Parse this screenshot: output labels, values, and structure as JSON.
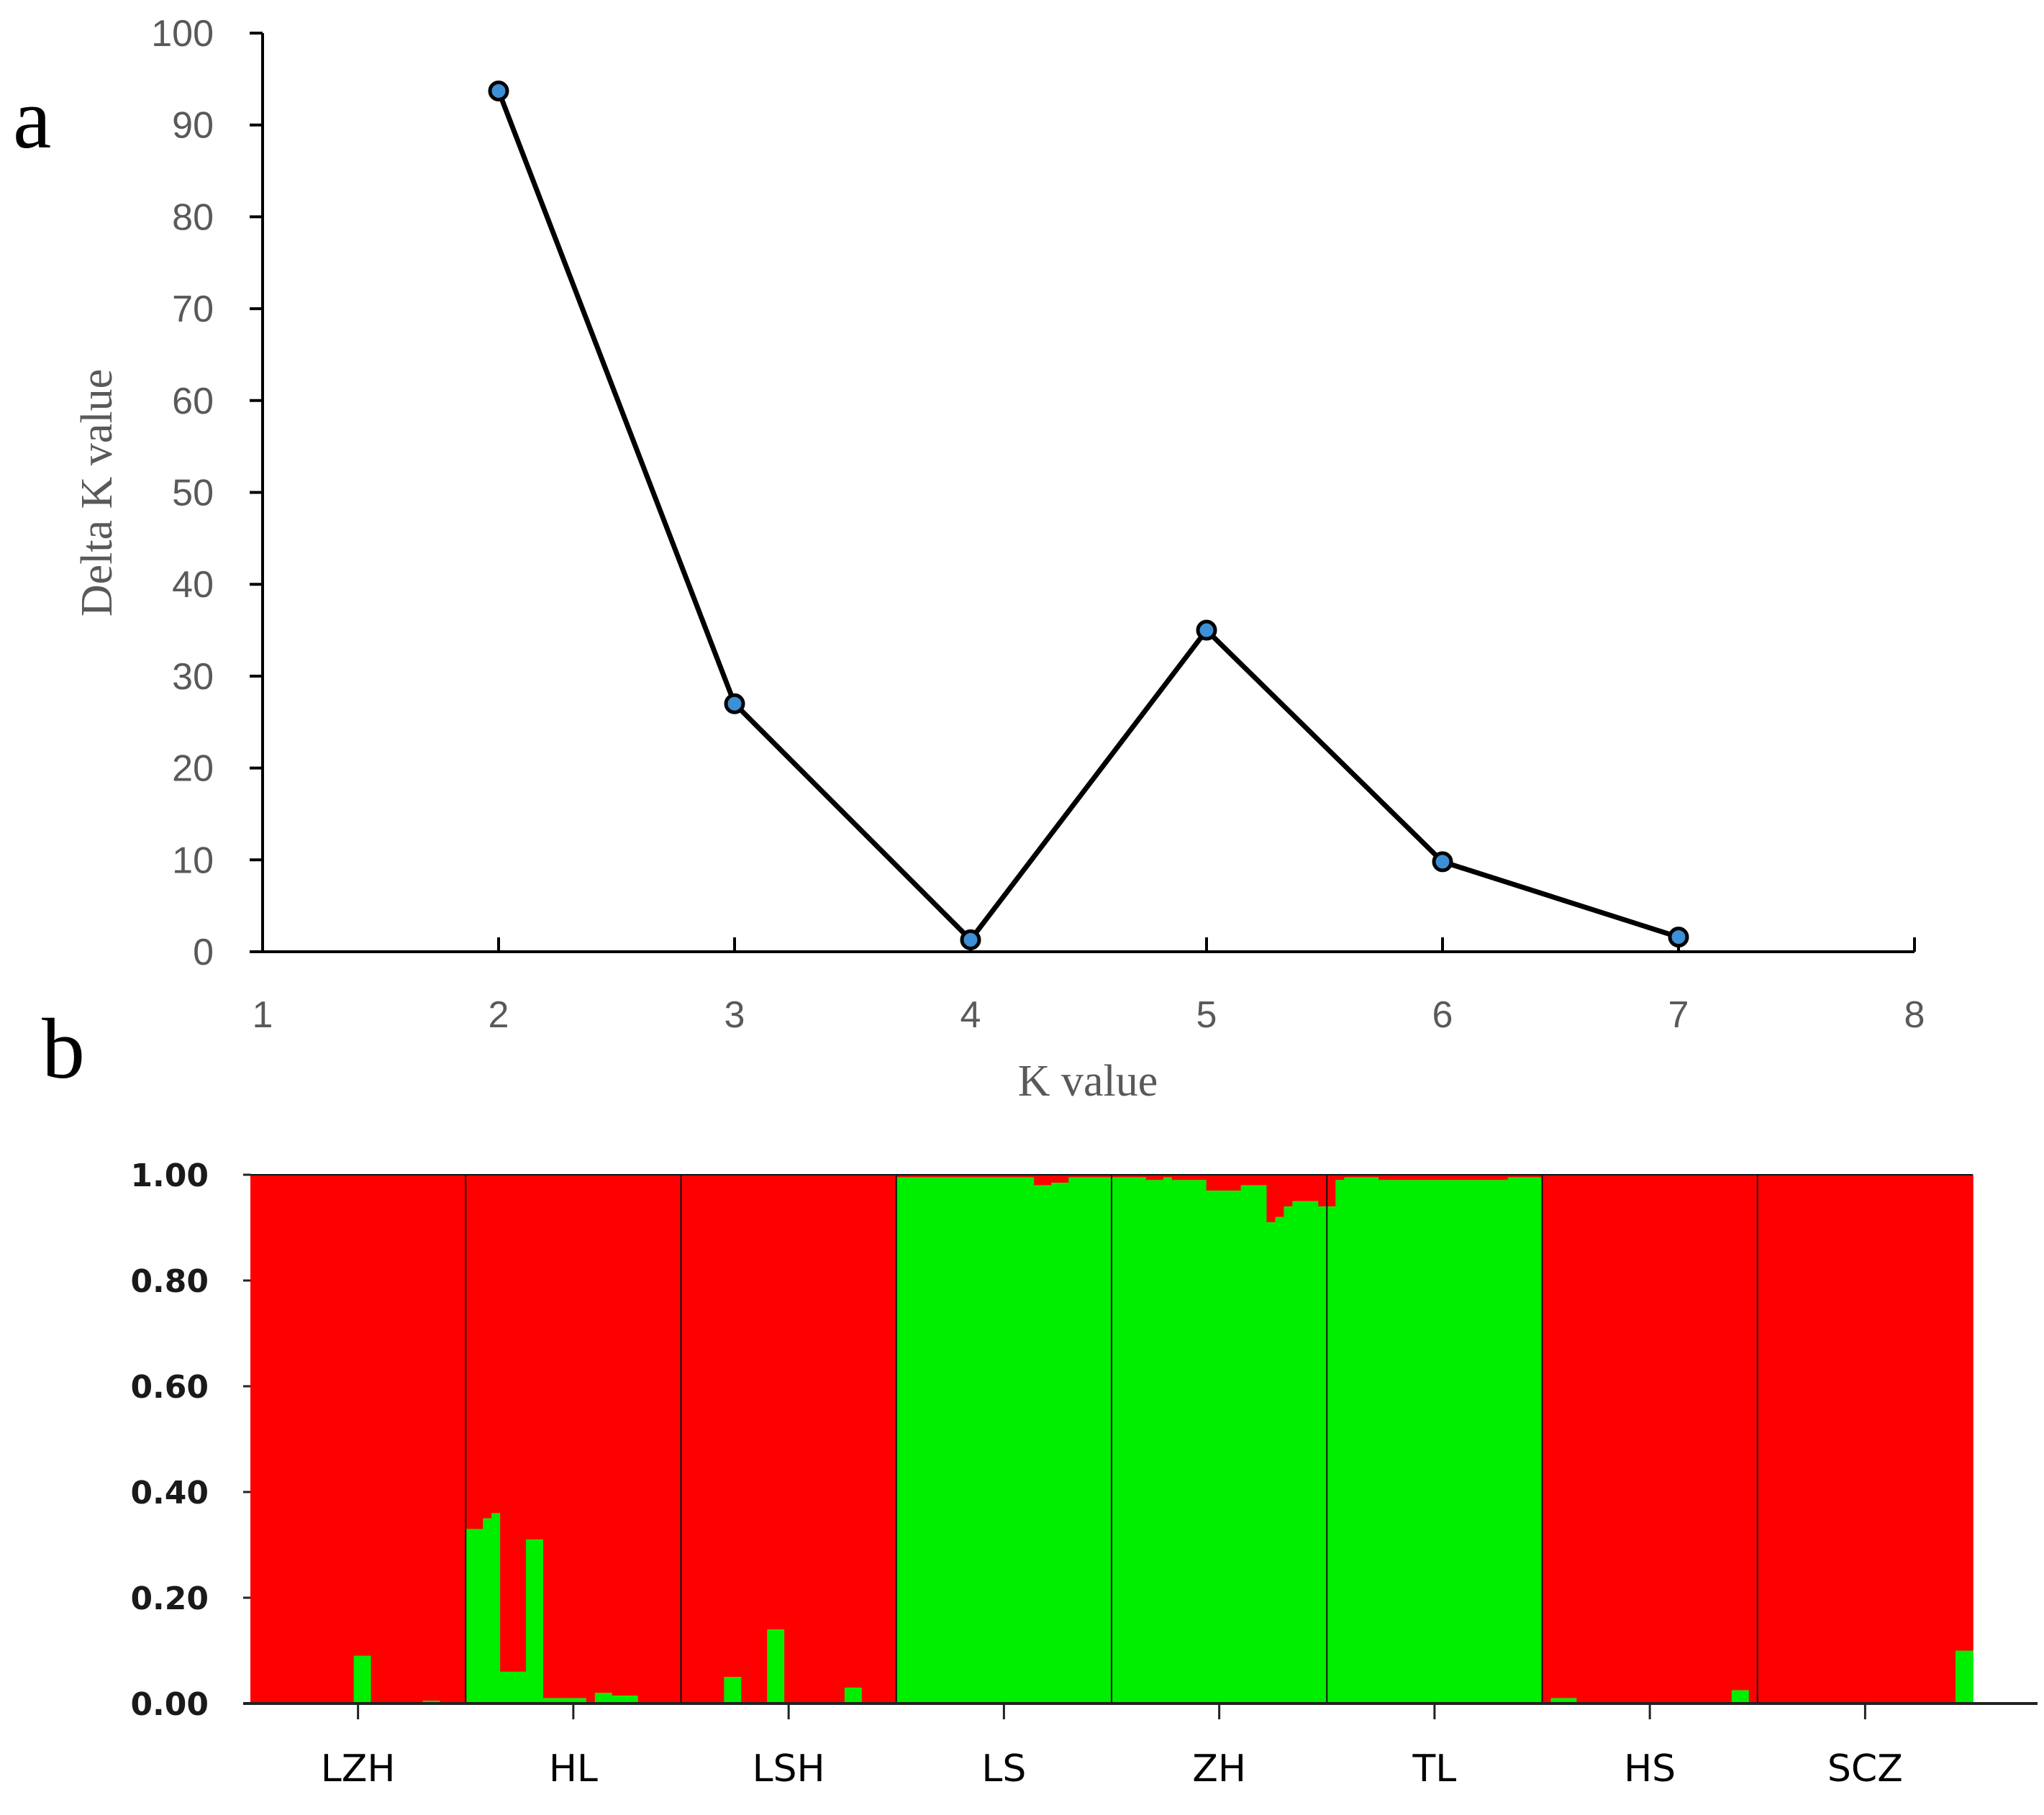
{
  "panels": {
    "a": "a",
    "b": "b"
  },
  "chart_data": [
    {
      "type": "line",
      "panel": "a",
      "title": "",
      "xlabel": "K value",
      "ylabel": "Delta K value",
      "xlim": [
        1,
        8
      ],
      "ylim": [
        0,
        100
      ],
      "xticks": [
        1,
        2,
        3,
        4,
        5,
        6,
        7,
        8
      ],
      "yticks": [
        0,
        10,
        20,
        30,
        40,
        50,
        60,
        70,
        80,
        90,
        100
      ],
      "grid": false,
      "x": [
        2,
        3,
        4,
        5,
        6,
        7
      ],
      "y": [
        93.7,
        27.0,
        1.3,
        35.0,
        9.8,
        1.6
      ],
      "line_color": "#000000",
      "marker_color": "#3d8fd6"
    },
    {
      "type": "bar",
      "subtype": "stacked-structure",
      "panel": "b",
      "ylim": [
        0,
        1
      ],
      "ytick_labels": [
        "0.00",
        "0.20",
        "0.40",
        "0.60",
        "0.80",
        "1.00"
      ],
      "yticks": [
        0,
        0.2,
        0.4,
        0.6,
        0.8,
        1.0
      ],
      "colors": {
        "cluster1": "#ff0000",
        "cluster2": "#00ee00"
      },
      "categories": [
        "LZH",
        "HL",
        "LSH",
        "LS",
        "ZH",
        "TL",
        "HS",
        "SCZ"
      ],
      "groups": [
        {
          "name": "LZH",
          "green": [
            0,
            0,
            0,
            0,
            0,
            0,
            0,
            0,
            0,
            0,
            0,
            0,
            0.09,
            0.09,
            0,
            0,
            0,
            0,
            0,
            0,
            0.005,
            0.005,
            0,
            0,
            0
          ]
        },
        {
          "name": "HL",
          "green": [
            0.33,
            0.33,
            0.35,
            0.36,
            0.06,
            0.06,
            0.06,
            0.31,
            0.31,
            0.01,
            0.01,
            0.01,
            0.01,
            0.01,
            0,
            0.02,
            0.02,
            0.015,
            0.015,
            0.015,
            0,
            0,
            0,
            0,
            0
          ]
        },
        {
          "name": "LSH",
          "green": [
            0,
            0,
            0,
            0,
            0,
            0.05,
            0.05,
            0,
            0,
            0,
            0.14,
            0.14,
            0,
            0,
            0,
            0,
            0,
            0,
            0,
            0.03,
            0.03,
            0,
            0,
            0,
            0
          ]
        },
        {
          "name": "LS",
          "green": [
            0.995,
            0.995,
            0.995,
            0.995,
            0.995,
            0.995,
            0.995,
            0.995,
            0.995,
            0.995,
            0.995,
            0.995,
            0.995,
            0.995,
            0.995,
            0.995,
            0.98,
            0.98,
            0.985,
            0.985,
            0.995,
            0.995,
            0.995,
            0.995,
            0.995
          ]
        },
        {
          "name": "ZH",
          "green": [
            0.995,
            0.995,
            0.995,
            0.995,
            0.99,
            0.99,
            0.995,
            0.99,
            0.99,
            0.99,
            0.99,
            0.97,
            0.97,
            0.97,
            0.97,
            0.98,
            0.98,
            0.98,
            0.91,
            0.92,
            0.94,
            0.95,
            0.95,
            0.95,
            0.94
          ]
        },
        {
          "name": "TL",
          "green": [
            0.94,
            0.99,
            0.995,
            0.995,
            0.995,
            0.995,
            0.99,
            0.99,
            0.99,
            0.99,
            0.99,
            0.99,
            0.99,
            0.99,
            0.99,
            0.99,
            0.99,
            0.99,
            0.99,
            0.99,
            0.99,
            0.995,
            0.995,
            0.995,
            0.995
          ]
        },
        {
          "name": "HS",
          "green": [
            0,
            0.01,
            0.01,
            0.01,
            0,
            0,
            0,
            0,
            0,
            0,
            0,
            0,
            0,
            0,
            0,
            0,
            0,
            0,
            0,
            0,
            0,
            0,
            0.025,
            0.025,
            0
          ]
        },
        {
          "name": "SCZ",
          "green": [
            0,
            0,
            0,
            0,
            0,
            0,
            0,
            0,
            0,
            0,
            0,
            0,
            0,
            0,
            0,
            0,
            0,
            0,
            0,
            0,
            0,
            0,
            0,
            0.1,
            0.1
          ]
        }
      ]
    }
  ]
}
